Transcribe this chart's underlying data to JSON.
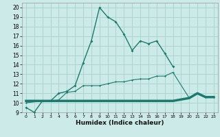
{
  "xlabel": "Humidex (Indice chaleur)",
  "background_color": "#cceae7",
  "grid_color": "#aed4d0",
  "line_color": "#1a7a6e",
  "xlim": [
    -0.5,
    23.5
  ],
  "ylim": [
    9,
    20.5
  ],
  "yticks": [
    9,
    10,
    11,
    12,
    13,
    14,
    15,
    16,
    17,
    18,
    19,
    20
  ],
  "xticks": [
    0,
    1,
    2,
    3,
    4,
    5,
    6,
    7,
    8,
    9,
    10,
    11,
    12,
    13,
    14,
    15,
    16,
    17,
    18,
    19,
    20,
    21,
    22,
    23
  ],
  "line1_x": [
    0,
    1,
    2,
    3,
    4,
    5,
    6,
    7,
    8,
    9,
    10,
    11,
    12,
    13,
    14,
    15,
    16,
    17,
    18
  ],
  "line1_y": [
    9.5,
    9.0,
    10.2,
    10.2,
    11.0,
    11.2,
    11.8,
    14.2,
    16.5,
    20.0,
    19.0,
    18.5,
    17.2,
    15.5,
    16.5,
    16.2,
    16.5,
    15.2,
    13.8
  ],
  "line2_x": [
    0,
    2,
    3,
    4,
    5,
    6,
    7,
    8,
    9,
    10,
    11,
    12,
    13,
    14,
    15,
    16,
    17,
    18,
    20,
    21,
    22,
    23
  ],
  "line2_y": [
    10.0,
    10.2,
    10.2,
    10.3,
    11.1,
    11.2,
    11.8,
    11.8,
    11.8,
    12.0,
    12.2,
    12.2,
    12.4,
    12.5,
    12.5,
    12.8,
    12.8,
    13.2,
    10.5,
    11.0,
    10.6,
    10.6
  ],
  "line3_x": [
    0,
    2,
    10,
    18,
    20,
    21,
    22,
    23
  ],
  "line3_y": [
    10.2,
    10.2,
    10.2,
    10.2,
    10.5,
    11.0,
    10.6,
    10.6
  ]
}
